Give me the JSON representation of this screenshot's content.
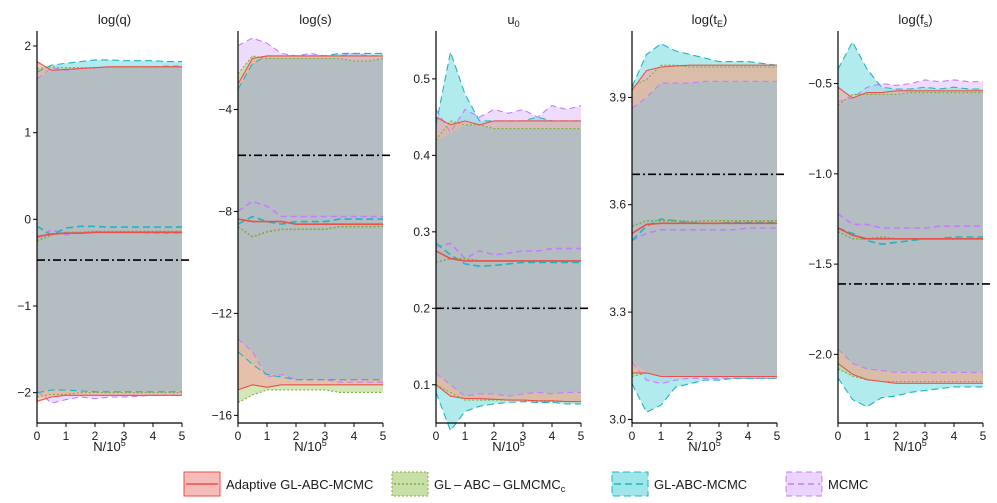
{
  "figure": {
    "x_label_prefix": "N/10",
    "x_label_sup": "5",
    "x_ticks": [
      0,
      1,
      2,
      3,
      4,
      5
    ]
  },
  "legend": [
    {
      "name": "Adaptive GL-ABC-MCMC",
      "color": "#e8524a",
      "fill": "#f4a6a1",
      "dash": ""
    },
    {
      "name": "GL – ABC – GLMCMC",
      "sub": "c",
      "color": "#7cae3a",
      "fill": "#b5d68b",
      "dash": "2,2"
    },
    {
      "name": "GL-ABC-MCMC",
      "color": "#1fb5c4",
      "fill": "#7fdde3",
      "dash": "7,4"
    },
    {
      "name": "MCMC",
      "color": "#c77cff",
      "fill": "#e3c4fb",
      "dash": "6,4"
    }
  ],
  "colors": {
    "gray_fill": "#b4bdc1",
    "axis": "#000000"
  },
  "chart_data": [
    {
      "type": "area",
      "title": "log(q)",
      "xlim": [
        0,
        5
      ],
      "ylim": [
        -2.35,
        2.15
      ],
      "yticks": [
        2,
        1,
        0,
        -1,
        -2
      ],
      "ytick_labels": [
        "2",
        "1",
        "0",
        "−1",
        "−2"
      ],
      "ref_line": -0.47,
      "upper": {
        "AGL": [
          1.82,
          1.72,
          1.73,
          1.74,
          1.75,
          1.76,
          1.76,
          1.76,
          1.76,
          1.76,
          1.76
        ],
        "GLc": [
          1.74,
          1.76,
          1.75,
          1.75,
          1.75,
          1.76,
          1.76,
          1.76,
          1.76,
          1.76,
          1.76
        ],
        "GLA": [
          1.7,
          1.78,
          1.8,
          1.82,
          1.84,
          1.84,
          1.83,
          1.83,
          1.83,
          1.82,
          1.82
        ],
        "MCMC": [
          1.62,
          1.75,
          1.72,
          1.74,
          1.75,
          1.76,
          1.76,
          1.76,
          1.76,
          1.77,
          1.77
        ]
      },
      "median": {
        "AGL": [
          -0.2,
          -0.17,
          -0.16,
          -0.16,
          -0.15,
          -0.15,
          -0.15,
          -0.15,
          -0.15,
          -0.15,
          -0.15
        ],
        "GLc": [
          -0.25,
          -0.18,
          -0.15,
          -0.15,
          -0.14,
          -0.14,
          -0.14,
          -0.14,
          -0.14,
          -0.14,
          -0.14
        ],
        "GLA": [
          -0.08,
          -0.18,
          -0.1,
          -0.08,
          -0.08,
          -0.09,
          -0.09,
          -0.09,
          -0.09,
          -0.09,
          -0.09
        ],
        "MCMC": [
          -0.22,
          -0.12,
          -0.18,
          -0.15,
          -0.15,
          -0.15,
          -0.15,
          -0.15,
          -0.16,
          -0.16,
          -0.16
        ]
      },
      "lower": {
        "AGL": [
          -2.1,
          -2.05,
          -2.03,
          -2.03,
          -2.03,
          -2.03,
          -2.03,
          -2.03,
          -2.03,
          -2.03,
          -2.03
        ],
        "GLc": [
          -2.05,
          -2.02,
          -2.02,
          -2.0,
          -2.0,
          -2.0,
          -2.0,
          -2.0,
          -2.0,
          -2.0,
          -2.0
        ],
        "GLA": [
          -2.0,
          -1.97,
          -1.97,
          -1.98,
          -1.99,
          -1.99,
          -1.99,
          -1.99,
          -1.99,
          -1.99,
          -1.99
        ],
        "MCMC": [
          -1.98,
          -2.12,
          -2.08,
          -2.05,
          -2.07,
          -2.05,
          -2.05,
          -2.04,
          -2.03,
          -2.03,
          -2.03
        ]
      }
    },
    {
      "type": "area",
      "title": "log(s)",
      "xlim": [
        0,
        5
      ],
      "ylim": [
        -16.3,
        -1.0
      ],
      "yticks": [
        -4,
        -8,
        -12,
        -16
      ],
      "ytick_labels": [
        "−4",
        "−8",
        "−12",
        "−16"
      ],
      "ref_line": -5.8,
      "upper": {
        "AGL": [
          -3.0,
          -2.0,
          -1.9,
          -1.9,
          -1.9,
          -1.9,
          -1.9,
          -1.9,
          -1.9,
          -1.9,
          -1.9
        ],
        "GLc": [
          -2.6,
          -1.9,
          -2.0,
          -2.0,
          -2.0,
          -2.0,
          -2.0,
          -2.0,
          -2.1,
          -2.1,
          -2.0
        ],
        "GLA": [
          -3.2,
          -2.2,
          -1.9,
          -1.9,
          -1.9,
          -1.9,
          -1.9,
          -1.8,
          -1.8,
          -1.8,
          -1.8
        ],
        "MCMC": [
          -1.5,
          -1.2,
          -1.4,
          -1.8,
          -1.9,
          -1.8,
          -1.9,
          -1.9,
          -1.8,
          -1.9,
          -1.9
        ]
      },
      "median": {
        "AGL": [
          -8.3,
          -8.4,
          -8.4,
          -8.4,
          -8.5,
          -8.5,
          -8.5,
          -8.5,
          -8.5,
          -8.5,
          -8.5
        ],
        "GLc": [
          -8.6,
          -9.0,
          -8.8,
          -8.7,
          -8.7,
          -8.7,
          -8.7,
          -8.6,
          -8.6,
          -8.6,
          -8.6
        ],
        "GLA": [
          -8.5,
          -8.2,
          -8.4,
          -8.5,
          -8.4,
          -8.4,
          -8.4,
          -8.3,
          -8.3,
          -8.3,
          -8.3
        ],
        "MCMC": [
          -8.0,
          -7.6,
          -7.8,
          -8.2,
          -8.2,
          -8.2,
          -8.2,
          -8.2,
          -8.2,
          -8.2,
          -8.2
        ]
      },
      "lower": {
        "AGL": [
          -15.0,
          -14.8,
          -14.9,
          -14.8,
          -14.8,
          -14.8,
          -14.8,
          -14.8,
          -14.8,
          -14.8,
          -14.8
        ],
        "GLc": [
          -15.5,
          -15.2,
          -15.0,
          -15.0,
          -15.0,
          -15.0,
          -15.0,
          -15.1,
          -15.1,
          -15.1,
          -15.1
        ],
        "GLA": [
          -13.5,
          -14.0,
          -14.4,
          -14.5,
          -14.6,
          -14.6,
          -14.6,
          -14.6,
          -14.6,
          -14.6,
          -14.6
        ],
        "MCMC": [
          -13.0,
          -13.5,
          -14.5,
          -14.4,
          -14.6,
          -14.6,
          -14.6,
          -14.7,
          -14.7,
          -14.7,
          -14.7
        ]
      }
    },
    {
      "type": "area",
      "title": "u",
      "title_sub": "0",
      "xlim": [
        0,
        5
      ],
      "ylim": [
        0.05,
        0.56
      ],
      "yticks": [
        0.5,
        0.4,
        0.3,
        0.2,
        0.1
      ],
      "ytick_labels": [
        "0.5",
        "0.4",
        "0.3",
        "0.2",
        "0.1"
      ],
      "ref_line": 0.2,
      "upper": {
        "AGL": [
          0.45,
          0.44,
          0.445,
          0.44,
          0.445,
          0.445,
          0.445,
          0.445,
          0.445,
          0.445,
          0.445
        ],
        "GLc": [
          0.42,
          0.445,
          0.44,
          0.44,
          0.435,
          0.435,
          0.435,
          0.435,
          0.435,
          0.435,
          0.435
        ],
        "GLA": [
          0.44,
          0.535,
          0.48,
          0.445,
          0.445,
          0.445,
          0.445,
          0.45,
          0.445,
          0.445,
          0.445
        ],
        "MCMC": [
          0.46,
          0.43,
          0.46,
          0.45,
          0.46,
          0.455,
          0.46,
          0.45,
          0.465,
          0.46,
          0.465
        ]
      },
      "median": {
        "AGL": [
          0.275,
          0.265,
          0.262,
          0.262,
          0.262,
          0.262,
          0.262,
          0.262,
          0.262,
          0.262,
          0.262
        ],
        "GLc": [
          0.26,
          0.265,
          0.265,
          0.262,
          0.262,
          0.262,
          0.262,
          0.262,
          0.262,
          0.262,
          0.262
        ],
        "GLA": [
          0.285,
          0.27,
          0.258,
          0.255,
          0.256,
          0.258,
          0.26,
          0.26,
          0.26,
          0.26,
          0.26
        ],
        "MCMC": [
          0.28,
          0.285,
          0.265,
          0.275,
          0.27,
          0.272,
          0.275,
          0.275,
          0.278,
          0.278,
          0.278
        ]
      },
      "lower": {
        "AGL": [
          0.1,
          0.085,
          0.082,
          0.082,
          0.081,
          0.08,
          0.08,
          0.079,
          0.079,
          0.078,
          0.078
        ],
        "GLc": [
          0.1,
          0.09,
          0.08,
          0.08,
          0.08,
          0.08,
          0.08,
          0.078,
          0.078,
          0.078,
          0.078
        ],
        "GLA": [
          0.09,
          0.04,
          0.065,
          0.072,
          0.075,
          0.077,
          0.078,
          0.077,
          0.077,
          0.075,
          0.075
        ],
        "MCMC": [
          0.115,
          0.1,
          0.085,
          0.088,
          0.088,
          0.085,
          0.088,
          0.09,
          0.088,
          0.09,
          0.09
        ]
      }
    },
    {
      "type": "area",
      "title": "log(t",
      "title_sub": "E",
      "title_end": ")",
      "xlim": [
        0,
        5
      ],
      "ylim": [
        2.99,
        4.08
      ],
      "yticks": [
        3.9,
        3.6,
        3.3,
        3.0
      ],
      "ytick_labels": [
        "3.9",
        "3.6",
        "3.3",
        "3.0"
      ],
      "ref_line": 3.685,
      "upper": {
        "AGL": [
          3.92,
          3.975,
          3.985,
          3.988,
          3.99,
          3.99,
          3.99,
          3.99,
          3.99,
          3.99,
          3.99
        ],
        "GLc": [
          3.93,
          3.95,
          3.99,
          3.99,
          3.985,
          3.985,
          3.985,
          3.985,
          3.985,
          3.985,
          3.985
        ],
        "GLA": [
          3.93,
          4.02,
          4.05,
          4.03,
          4.02,
          4.01,
          4.0,
          4.0,
          4.0,
          3.995,
          3.99
        ],
        "MCMC": [
          3.87,
          3.9,
          3.94,
          3.94,
          3.94,
          3.945,
          3.945,
          3.945,
          3.945,
          3.945,
          3.945
        ]
      },
      "median": {
        "AGL": [
          3.52,
          3.545,
          3.548,
          3.548,
          3.548,
          3.548,
          3.548,
          3.548,
          3.548,
          3.548,
          3.548
        ],
        "GLc": [
          3.54,
          3.555,
          3.555,
          3.555,
          3.553,
          3.555,
          3.555,
          3.555,
          3.555,
          3.555,
          3.555
        ],
        "GLA": [
          3.5,
          3.54,
          3.56,
          3.555,
          3.55,
          3.548,
          3.548,
          3.55,
          3.55,
          3.55,
          3.55
        ],
        "MCMC": [
          3.5,
          3.52,
          3.53,
          3.53,
          3.53,
          3.53,
          3.53,
          3.53,
          3.535,
          3.535,
          3.535
        ]
      },
      "lower": {
        "AGL": [
          3.13,
          3.13,
          3.12,
          3.12,
          3.12,
          3.12,
          3.12,
          3.12,
          3.12,
          3.12,
          3.12
        ],
        "GLc": [
          3.12,
          3.13,
          3.12,
          3.12,
          3.12,
          3.12,
          3.12,
          3.12,
          3.12,
          3.12,
          3.12
        ],
        "GLA": [
          3.1,
          3.02,
          3.04,
          3.09,
          3.1,
          3.11,
          3.11,
          3.115,
          3.115,
          3.115,
          3.115
        ],
        "MCMC": [
          3.16,
          3.11,
          3.1,
          3.11,
          3.115,
          3.115,
          3.115,
          3.115,
          3.115,
          3.115,
          3.115
        ]
      }
    },
    {
      "type": "area",
      "title": "log(f",
      "title_sub": "s",
      "title_end": ")",
      "xlim": [
        0,
        5
      ],
      "ylim": [
        -2.38,
        -0.22
      ],
      "yticks": [
        -0.5,
        -1.0,
        -1.5,
        -2.0
      ],
      "ytick_labels": [
        "−0.5",
        "−1.0",
        "−1.5",
        "−2.0"
      ],
      "ref_line": -1.61,
      "upper": {
        "AGL": [
          -0.52,
          -0.58,
          -0.55,
          -0.55,
          -0.54,
          -0.54,
          -0.54,
          -0.54,
          -0.54,
          -0.54,
          -0.54
        ],
        "GLc": [
          -0.62,
          -0.56,
          -0.56,
          -0.56,
          -0.56,
          -0.55,
          -0.55,
          -0.55,
          -0.55,
          -0.55,
          -0.55
        ],
        "GLA": [
          -0.42,
          -0.27,
          -0.42,
          -0.52,
          -0.53,
          -0.53,
          -0.52,
          -0.53,
          -0.52,
          -0.53,
          -0.53
        ],
        "MCMC": [
          -0.6,
          -0.58,
          -0.52,
          -0.5,
          -0.51,
          -0.5,
          -0.48,
          -0.49,
          -0.48,
          -0.49,
          -0.49
        ]
      },
      "median": {
        "AGL": [
          -1.3,
          -1.34,
          -1.36,
          -1.36,
          -1.36,
          -1.36,
          -1.36,
          -1.36,
          -1.36,
          -1.36,
          -1.36
        ],
        "GLc": [
          -1.32,
          -1.36,
          -1.36,
          -1.35,
          -1.36,
          -1.36,
          -1.36,
          -1.36,
          -1.36,
          -1.36,
          -1.36
        ],
        "GLA": [
          -1.3,
          -1.33,
          -1.37,
          -1.39,
          -1.38,
          -1.37,
          -1.36,
          -1.36,
          -1.35,
          -1.35,
          -1.35
        ],
        "MCMC": [
          -1.22,
          -1.28,
          -1.28,
          -1.3,
          -1.3,
          -1.3,
          -1.3,
          -1.29,
          -1.29,
          -1.29,
          -1.29
        ]
      },
      "lower": {
        "AGL": [
          -2.05,
          -2.11,
          -2.14,
          -2.15,
          -2.16,
          -2.16,
          -2.16,
          -2.16,
          -2.16,
          -2.16,
          -2.16
        ],
        "GLc": [
          -2.08,
          -2.12,
          -2.14,
          -2.15,
          -2.15,
          -2.15,
          -2.15,
          -2.15,
          -2.15,
          -2.15,
          -2.15
        ],
        "GLA": [
          -2.13,
          -2.25,
          -2.29,
          -2.24,
          -2.23,
          -2.21,
          -2.2,
          -2.19,
          -2.18,
          -2.18,
          -2.18
        ],
        "MCMC": [
          -1.97,
          -2.05,
          -2.08,
          -2.09,
          -2.1,
          -2.1,
          -2.1,
          -2.1,
          -2.1,
          -2.1,
          -2.1
        ]
      }
    }
  ]
}
